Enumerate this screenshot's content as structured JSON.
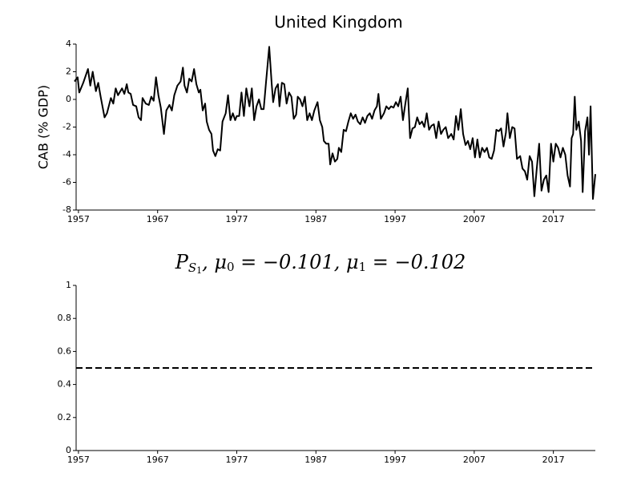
{
  "chart_data": [
    {
      "type": "line",
      "title": "United Kingdom",
      "ylabel": "CAB (% GDP)",
      "xlim": [
        1956.4,
        2022.3
      ],
      "xticks": [
        1957,
        1967,
        1977,
        1987,
        1997,
        2007,
        2017
      ],
      "ylim": [
        -8,
        4
      ],
      "yticks": [
        4,
        2,
        0,
        -2,
        -4,
        -6,
        -8
      ],
      "series": [
        {
          "color": "#000000",
          "x": [
            1956.5,
            1956.9,
            1957.1,
            1957.6,
            1958.2,
            1958.5,
            1958.8,
            1959.2,
            1959.5,
            1959.8,
            1960.3,
            1960.6,
            1961.1,
            1961.4,
            1961.7,
            1962.0,
            1962.5,
            1962.8,
            1963.1,
            1963.3,
            1963.6,
            1963.9,
            1964.3,
            1964.6,
            1964.9,
            1965.1,
            1965.5,
            1965.9,
            1966.2,
            1966.5,
            1966.8,
            1967.1,
            1967.4,
            1967.8,
            1968.1,
            1968.5,
            1968.8,
            1969.1,
            1969.5,
            1969.9,
            1970.2,
            1970.4,
            1970.7,
            1971.0,
            1971.3,
            1971.6,
            1971.9,
            1972.2,
            1972.4,
            1972.7,
            1973.0,
            1973.2,
            1973.5,
            1973.8,
            1974.0,
            1974.3,
            1974.6,
            1974.9,
            1975.2,
            1975.6,
            1975.9,
            1976.2,
            1976.5,
            1976.8,
            1977.0,
            1977.3,
            1977.6,
            1977.9,
            1978.2,
            1978.6,
            1978.9,
            1979.2,
            1979.5,
            1979.8,
            1980.1,
            1980.4,
            1980.7,
            1981.1,
            1981.4,
            1981.6,
            1981.9,
            1982.2,
            1982.4,
            1982.7,
            1983.0,
            1983.3,
            1983.6,
            1983.9,
            1984.2,
            1984.5,
            1984.7,
            1985.0,
            1985.3,
            1985.6,
            1985.9,
            1986.2,
            1986.5,
            1986.8,
            1987.2,
            1987.5,
            1987.8,
            1988.0,
            1988.3,
            1988.6,
            1988.8,
            1989.1,
            1989.4,
            1989.7,
            1989.9,
            1990.2,
            1990.5,
            1990.8,
            1991.1,
            1991.4,
            1991.7,
            1992.0,
            1992.3,
            1992.6,
            1992.9,
            1993.2,
            1993.5,
            1993.8,
            1994.1,
            1994.4,
            1994.7,
            1994.9,
            1995.2,
            1995.6,
            1995.9,
            1996.2,
            1996.5,
            1996.8,
            1997.1,
            1997.4,
            1997.7,
            1998.0,
            1998.3,
            1998.6,
            1998.9,
            1999.2,
            1999.5,
            1999.8,
            2000.1,
            2000.4,
            2000.7,
            2001.0,
            2001.3,
            2001.6,
            2001.9,
            2002.2,
            2002.5,
            2002.8,
            2003.1,
            2003.4,
            2003.7,
            2004.1,
            2004.4,
            2004.7,
            2005.0,
            2005.3,
            2005.6,
            2005.9,
            2006.2,
            2006.5,
            2006.8,
            2007.1,
            2007.4,
            2007.7,
            2008.0,
            2008.3,
            2008.6,
            2008.9,
            2009.2,
            2009.5,
            2009.8,
            2010.1,
            2010.4,
            2010.7,
            2011.0,
            2011.2,
            2011.5,
            2011.8,
            2012.1,
            2012.4,
            2012.8,
            2013.1,
            2013.4,
            2013.7,
            2014.0,
            2014.3,
            2014.6,
            2014.9,
            2015.2,
            2015.5,
            2015.8,
            2016.1,
            2016.4,
            2016.7,
            2017.0,
            2017.3,
            2017.6,
            2017.9,
            2018.2,
            2018.5,
            2018.8,
            2019.1,
            2019.3,
            2019.5,
            2019.7,
            2019.9,
            2020.2,
            2020.5,
            2020.7,
            2021.0,
            2021.3,
            2021.5,
            2021.7,
            2022.0,
            2022.3
          ],
          "values": [
            1.3,
            1.6,
            0.5,
            1.2,
            2.2,
            1.0,
            2.0,
            0.6,
            1.2,
            0.2,
            -1.3,
            -1.0,
            0.1,
            -0.3,
            0.8,
            0.3,
            0.8,
            0.4,
            1.1,
            0.5,
            0.4,
            -0.4,
            -0.5,
            -1.3,
            -1.5,
            0.1,
            -0.3,
            -0.4,
            0.2,
            -0.1,
            1.6,
            0.3,
            -0.6,
            -2.5,
            -0.8,
            -0.4,
            -0.8,
            0.3,
            1.0,
            1.3,
            2.3,
            1.0,
            0.5,
            1.5,
            1.3,
            2.2,
            1.1,
            0.5,
            0.7,
            -0.8,
            -0.3,
            -1.6,
            -2.2,
            -2.5,
            -3.7,
            -4.1,
            -3.6,
            -3.7,
            -1.6,
            -1.0,
            0.3,
            -1.5,
            -1.0,
            -1.5,
            -1.2,
            -1.2,
            0.5,
            -1.2,
            0.8,
            -0.5,
            0.8,
            -1.5,
            -0.5,
            0.0,
            -0.7,
            -0.7,
            1.3,
            3.8,
            1.2,
            -0.2,
            0.8,
            1.1,
            -0.5,
            1.2,
            1.1,
            -0.3,
            0.5,
            0.2,
            -1.4,
            -1.1,
            0.2,
            0.0,
            -0.5,
            0.2,
            -1.5,
            -1.0,
            -1.5,
            -0.8,
            -0.2,
            -1.5,
            -2.0,
            -3.0,
            -3.2,
            -3.2,
            -4.7,
            -3.9,
            -4.5,
            -4.3,
            -3.5,
            -3.8,
            -2.2,
            -2.3,
            -1.6,
            -1.0,
            -1.4,
            -1.1,
            -1.6,
            -1.8,
            -1.3,
            -1.7,
            -1.2,
            -1.0,
            -1.4,
            -0.8,
            -0.5,
            0.4,
            -1.4,
            -1.0,
            -0.5,
            -0.7,
            -0.5,
            -0.6,
            -0.2,
            -0.5,
            0.2,
            -1.5,
            -0.3,
            0.8,
            -2.8,
            -2.1,
            -2.0,
            -1.3,
            -1.8,
            -1.6,
            -2.0,
            -1.0,
            -2.2,
            -1.9,
            -1.8,
            -2.8,
            -1.6,
            -2.5,
            -2.2,
            -2.0,
            -2.8,
            -2.5,
            -2.9,
            -1.2,
            -2.2,
            -0.7,
            -2.5,
            -3.3,
            -3.0,
            -3.6,
            -2.8,
            -4.2,
            -2.9,
            -4.2,
            -3.5,
            -3.8,
            -3.5,
            -4.2,
            -4.3,
            -3.7,
            -2.2,
            -2.3,
            -2.1,
            -3.4,
            -2.4,
            -1.0,
            -2.8,
            -2.0,
            -2.1,
            -4.3,
            -4.1,
            -5.0,
            -5.2,
            -5.8,
            -4.1,
            -4.5,
            -7.0,
            -5.0,
            -3.2,
            -6.6,
            -5.8,
            -5.5,
            -6.7,
            -3.2,
            -4.5,
            -3.2,
            -3.5,
            -4.2,
            -3.5,
            -4.0,
            -5.5,
            -6.3,
            -2.8,
            -2.5,
            0.2,
            -2.2,
            -1.6,
            -3.0,
            -6.7,
            -2.3,
            -1.3,
            -4.0,
            -0.5,
            -7.2,
            -5.4
          ]
        }
      ]
    },
    {
      "type": "hline",
      "title_parts": [
        "P",
        "S",
        "1",
        ", μ",
        "0",
        " = −0.101, μ",
        "1",
        " = −0.102"
      ],
      "xlim": [
        1956.4,
        2022.3
      ],
      "xticks": [
        1957,
        1967,
        1977,
        1987,
        1997,
        2007,
        2017
      ],
      "ylim": [
        0,
        1
      ],
      "yticks": [
        0,
        0.2,
        0.4,
        0.6,
        0.8,
        1
      ],
      "hline": 0.5,
      "line_style": "dashed",
      "color": "#000000"
    }
  ]
}
